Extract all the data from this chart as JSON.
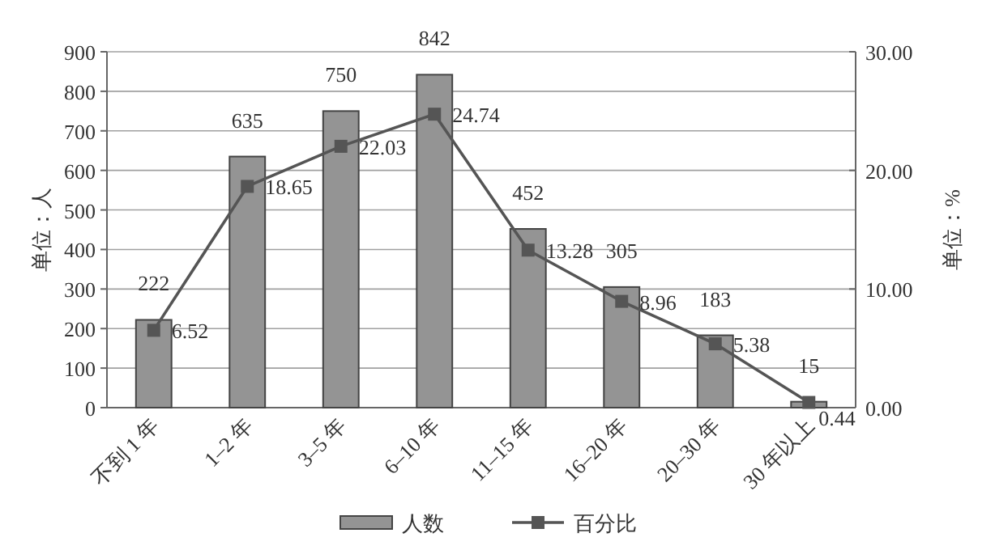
{
  "chart_data": {
    "type": "bar",
    "categories": [
      "不到 1 年",
      "1–2 年",
      "3–5 年",
      "6–10 年",
      "11–15 年",
      "16–20 年",
      "20–30 年",
      "30 年以上"
    ],
    "series": [
      {
        "name": "人数",
        "color": "#949494",
        "values": [
          222,
          635,
          750,
          842,
          452,
          305,
          183,
          15
        ]
      },
      {
        "name": "百分比",
        "type": "line",
        "axis": "y2",
        "color": "#555555",
        "marker": "square",
        "values": [
          6.52,
          18.65,
          22.03,
          24.74,
          13.28,
          8.96,
          5.38,
          0.44
        ]
      }
    ],
    "ylabel": "单位：人",
    "y2label": "单位：%",
    "ylim": [
      0,
      900
    ],
    "yticks": [
      0,
      100,
      200,
      300,
      400,
      500,
      600,
      700,
      800,
      900
    ],
    "y2lim": [
      0,
      30
    ],
    "y2ticks": [
      {
        "value": 0,
        "label": "0.00"
      },
      {
        "value": 10,
        "label": "10.00"
      },
      {
        "value": 20,
        "label": "20.00"
      },
      {
        "value": 30,
        "label": "30.00"
      }
    ],
    "grid": "y",
    "legend": "bottom",
    "data_labels": true
  }
}
